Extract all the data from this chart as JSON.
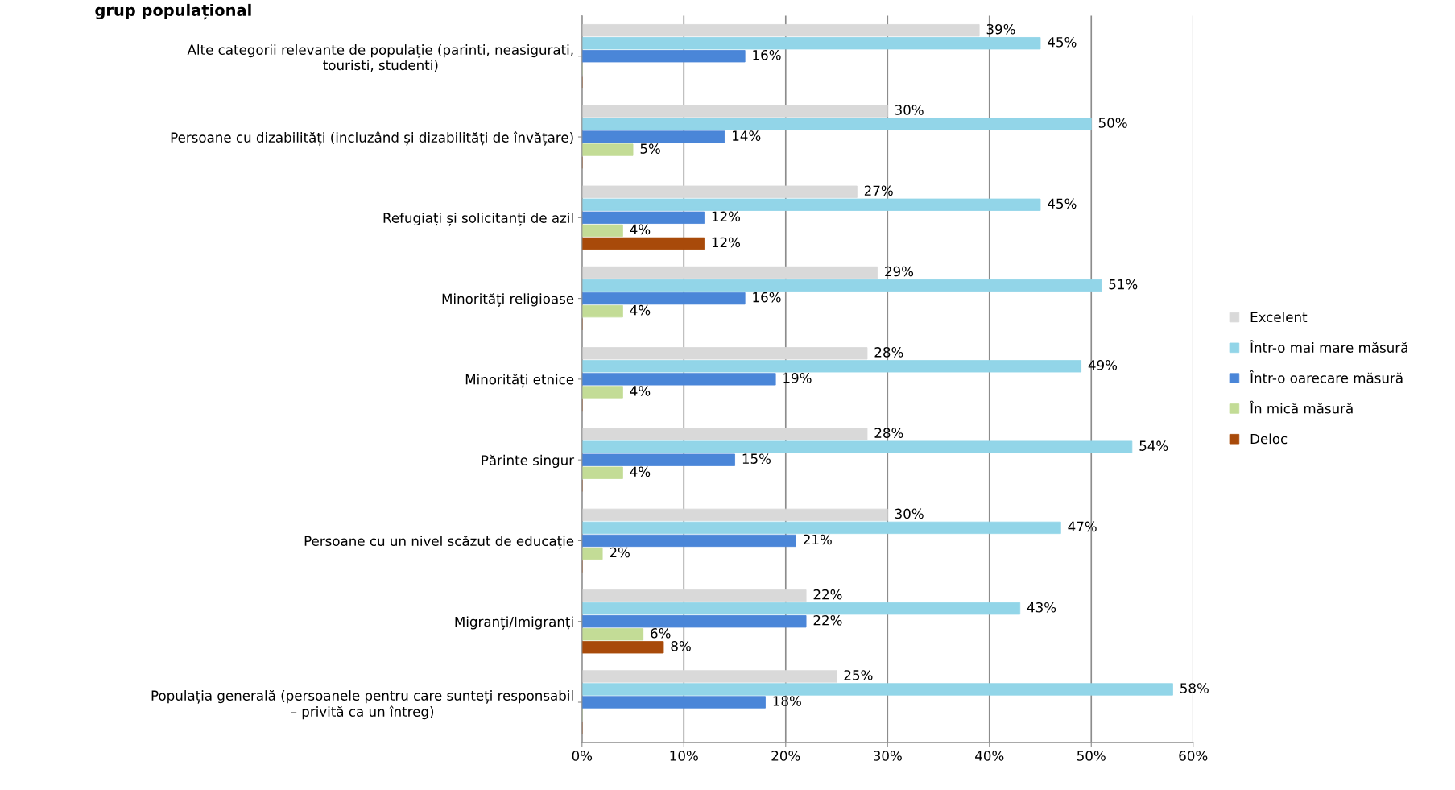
{
  "chart_data": {
    "type": "bar",
    "orientation": "horizontal",
    "title": "grup populațional",
    "categories": [
      "Alte categorii relevante de populație (parinti, neasigurati,\ntouristi, studenti)",
      "Persoane cu dizabilități (incluzând și dizabilități de învățare)",
      "Refugiați și solicitanți de azil",
      "Minorități religioase",
      "Minorități etnice",
      "Părinte singur",
      "Persoane cu un nivel scăzut de educație",
      "Migranți/Imigranți",
      "Populația generală (persoanele pentru care sunteți responsabil\n– privită ca un întreg)"
    ],
    "series": [
      {
        "name": "Excelent",
        "color": "#d9d9d9",
        "values": [
          39,
          30,
          27,
          29,
          28,
          28,
          30,
          22,
          25
        ],
        "value_labels": [
          "39%",
          "30%",
          "27%",
          "29%",
          "28%",
          "28%",
          "30%",
          "22%",
          "25%"
        ]
      },
      {
        "name": "Într-o mai mare măsură",
        "color": "#92d5e8",
        "values": [
          45,
          50,
          45,
          51,
          49,
          54,
          47,
          43,
          58
        ],
        "value_labels": [
          "45%",
          "50%",
          "45%",
          "51%",
          "49%",
          "54%",
          "47%",
          "43%",
          "58%"
        ]
      },
      {
        "name": "Într-o oarecare măsură",
        "color": "#4a86d8",
        "values": [
          16,
          14,
          12,
          16,
          19,
          15,
          21,
          22,
          18
        ],
        "value_labels": [
          "16%",
          "14%",
          "12%",
          "16%",
          "19%",
          "15%",
          "21%",
          "22%",
          "18%"
        ]
      },
      {
        "name": "În mică măsură",
        "color": "#c3dc96",
        "values": [
          0,
          5,
          4,
          4,
          4,
          4,
          2,
          6,
          0
        ],
        "value_labels": [
          null,
          "5%",
          "4%",
          "4%",
          "4%",
          "4%",
          "2%",
          "6%",
          null
        ]
      },
      {
        "name": "Deloc",
        "color": "#a84a0a",
        "values": [
          0,
          0,
          12,
          0,
          0,
          0,
          0,
          8,
          0
        ],
        "value_labels": [
          null,
          null,
          "12%",
          null,
          null,
          null,
          null,
          "8%",
          null
        ]
      }
    ],
    "xlim": [
      0,
      60
    ],
    "xticks": [
      {
        "value": 0,
        "label": "0%"
      },
      {
        "value": 10,
        "label": "10%"
      },
      {
        "value": 20,
        "label": "20%"
      },
      {
        "value": 30,
        "label": "30%"
      },
      {
        "value": 40,
        "label": "40%"
      },
      {
        "value": 50,
        "label": "50%"
      },
      {
        "value": 60,
        "label": "60%"
      }
    ],
    "grid": "x",
    "legend": "right"
  }
}
